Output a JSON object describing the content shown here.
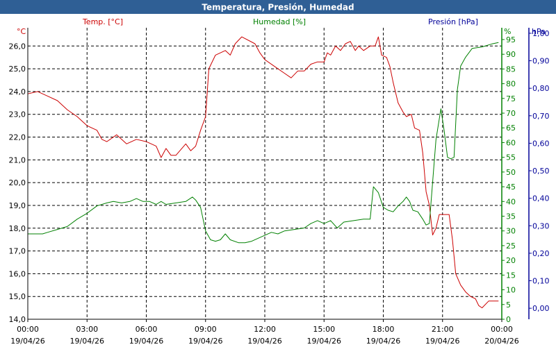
{
  "window": {
    "title": "Temperatura, Presión, Humedad"
  },
  "colors": {
    "titlebar": "#2f5f95",
    "temperature": "#cc0000",
    "humidity": "#008000",
    "pressure": "#000099",
    "grid": "#000000",
    "text": "#000000"
  },
  "chart_data": {
    "type": "line",
    "title": "Temperatura, Presión, Humedad",
    "grid": true,
    "legend": "top",
    "x_range": [
      "2026-04-19T00:00",
      "2026-04-20T00:00"
    ],
    "x_ticks": [
      {
        "time": "00:00",
        "date": "19/04/26"
      },
      {
        "time": "03:00",
        "date": "19/04/26"
      },
      {
        "time": "06:00",
        "date": "19/04/26"
      },
      {
        "time": "09:00",
        "date": "19/04/26"
      },
      {
        "time": "12:00",
        "date": "19/04/26"
      },
      {
        "time": "15:00",
        "date": "19/04/26"
      },
      {
        "time": "18:00",
        "date": "19/04/26"
      },
      {
        "time": "21:00",
        "date": "19/04/26"
      },
      {
        "time": "00:00",
        "date": "20/04/26"
      }
    ],
    "axes": {
      "temperature": {
        "unit": "°C",
        "range": [
          14.0,
          26.8
        ],
        "ticks": [
          "14,0",
          "15,0",
          "16,0",
          "17,0",
          "18,0",
          "19,0",
          "20,0",
          "21,0",
          "22,0",
          "23,0",
          "24,0",
          "25,0",
          "26,0"
        ],
        "tick_values": [
          14,
          15,
          16,
          17,
          18,
          19,
          20,
          21,
          22,
          23,
          24,
          25,
          26
        ]
      },
      "humidity": {
        "unit": "%",
        "range": [
          0,
          99
        ],
        "ticks": [
          "0",
          "5",
          "10",
          "15",
          "20",
          "25",
          "30",
          "35",
          "40",
          "45",
          "50",
          "55",
          "60",
          "65",
          "70",
          "75",
          "80",
          "85",
          "90",
          "95"
        ],
        "tick_values": [
          0,
          5,
          10,
          15,
          20,
          25,
          30,
          35,
          40,
          45,
          50,
          55,
          60,
          65,
          70,
          75,
          80,
          85,
          90,
          95
        ]
      },
      "pressure": {
        "unit": "hPa",
        "range": [
          -0.04,
          1.02
        ],
        "ticks": [
          "0,00",
          "0,10",
          "0,20",
          "0,30",
          "0,40",
          "0,50",
          "0,60",
          "0,70",
          "0,80",
          "0,90",
          "1,00"
        ],
        "tick_values": [
          0,
          0.1,
          0.2,
          0.3,
          0.4,
          0.5,
          0.6,
          0.7,
          0.8,
          0.9,
          1.0
        ]
      }
    },
    "series": [
      {
        "name": "Temp. [°C]",
        "axis": "temperature",
        "color": "#cc0000",
        "points": [
          [
            "00:00",
            23.9
          ],
          [
            "00:30",
            24.0
          ],
          [
            "01:00",
            23.8
          ],
          [
            "01:30",
            23.6
          ],
          [
            "02:00",
            23.2
          ],
          [
            "02:30",
            22.9
          ],
          [
            "03:00",
            22.5
          ],
          [
            "03:30",
            22.3
          ],
          [
            "03:45",
            21.9
          ],
          [
            "04:00",
            21.8
          ],
          [
            "04:30",
            22.1
          ],
          [
            "05:00",
            21.7
          ],
          [
            "05:30",
            21.9
          ],
          [
            "06:00",
            21.8
          ],
          [
            "06:30",
            21.6
          ],
          [
            "06:45",
            21.1
          ],
          [
            "07:00",
            21.5
          ],
          [
            "07:15",
            21.2
          ],
          [
            "07:30",
            21.2
          ],
          [
            "08:00",
            21.7
          ],
          [
            "08:15",
            21.4
          ],
          [
            "08:30",
            21.6
          ],
          [
            "08:45",
            22.3
          ],
          [
            "09:00",
            22.9
          ],
          [
            "09:10",
            25.0
          ],
          [
            "09:30",
            25.6
          ],
          [
            "10:00",
            25.8
          ],
          [
            "10:15",
            25.6
          ],
          [
            "10:30",
            26.1
          ],
          [
            "10:50",
            26.4
          ],
          [
            "11:30",
            26.1
          ],
          [
            "11:45",
            25.7
          ],
          [
            "12:00",
            25.4
          ],
          [
            "12:30",
            25.1
          ],
          [
            "13:00",
            24.8
          ],
          [
            "13:20",
            24.6
          ],
          [
            "13:40",
            24.9
          ],
          [
            "14:00",
            24.9
          ],
          [
            "14:20",
            25.2
          ],
          [
            "14:40",
            25.3
          ],
          [
            "15:00",
            25.3
          ],
          [
            "15:10",
            25.7
          ],
          [
            "15:20",
            25.6
          ],
          [
            "15:35",
            26.0
          ],
          [
            "15:50",
            25.8
          ],
          [
            "16:05",
            26.1
          ],
          [
            "16:20",
            26.2
          ],
          [
            "16:35",
            25.8
          ],
          [
            "16:45",
            26.0
          ],
          [
            "17:00",
            25.8
          ],
          [
            "17:20",
            26.0
          ],
          [
            "17:35",
            26.0
          ],
          [
            "17:45",
            26.4
          ],
          [
            "17:55",
            25.6
          ],
          [
            "18:10",
            25.5
          ],
          [
            "18:20",
            25.1
          ],
          [
            "18:30",
            24.4
          ],
          [
            "18:45",
            23.5
          ],
          [
            "19:00",
            23.1
          ],
          [
            "19:10",
            22.9
          ],
          [
            "19:25",
            23.0
          ],
          [
            "19:35",
            22.4
          ],
          [
            "19:50",
            22.3
          ],
          [
            "20:00",
            21.3
          ],
          [
            "20:10",
            19.6
          ],
          [
            "20:20",
            19.0
          ],
          [
            "20:30",
            17.7
          ],
          [
            "20:40",
            18.0
          ],
          [
            "20:50",
            18.6
          ],
          [
            "21:20",
            18.6
          ],
          [
            "21:30",
            17.5
          ],
          [
            "21:40",
            16.0
          ],
          [
            "21:55",
            15.5
          ],
          [
            "22:10",
            15.2
          ],
          [
            "22:25",
            15.0
          ],
          [
            "22:40",
            14.9
          ],
          [
            "22:50",
            14.6
          ],
          [
            "23:00",
            14.5
          ],
          [
            "23:20",
            14.8
          ],
          [
            "23:50",
            14.8
          ]
        ]
      },
      {
        "name": "Humedad [%]",
        "axis": "humidity",
        "color": "#008000",
        "points": [
          [
            "00:00",
            29.0
          ],
          [
            "00:45",
            29.0
          ],
          [
            "01:00",
            29.5
          ],
          [
            "01:30",
            30.5
          ],
          [
            "02:00",
            31.5
          ],
          [
            "02:30",
            34.0
          ],
          [
            "03:00",
            36.0
          ],
          [
            "03:30",
            38.5
          ],
          [
            "04:00",
            39.5
          ],
          [
            "04:20",
            40.0
          ],
          [
            "04:45",
            39.5
          ],
          [
            "05:10",
            40.0
          ],
          [
            "05:30",
            41.0
          ],
          [
            "05:50",
            40.0
          ],
          [
            "06:10",
            40.0
          ],
          [
            "06:30",
            39.0
          ],
          [
            "06:45",
            40.0
          ],
          [
            "07:00",
            39.0
          ],
          [
            "07:30",
            39.5
          ],
          [
            "08:00",
            40.0
          ],
          [
            "08:20",
            41.5
          ],
          [
            "08:30",
            40.5
          ],
          [
            "08:45",
            38.0
          ],
          [
            "09:00",
            30.0
          ],
          [
            "09:15",
            27.0
          ],
          [
            "09:30",
            26.5
          ],
          [
            "09:45",
            27.0
          ],
          [
            "10:00",
            29.0
          ],
          [
            "10:15",
            27.0
          ],
          [
            "10:40",
            26.0
          ],
          [
            "11:00",
            26.0
          ],
          [
            "11:20",
            26.5
          ],
          [
            "11:40",
            27.5
          ],
          [
            "12:00",
            28.5
          ],
          [
            "12:20",
            29.5
          ],
          [
            "12:40",
            29.0
          ],
          [
            "13:00",
            30.0
          ],
          [
            "13:30",
            30.5
          ],
          [
            "14:00",
            31.0
          ],
          [
            "14:20",
            32.5
          ],
          [
            "14:40",
            33.5
          ],
          [
            "15:00",
            32.5
          ],
          [
            "15:20",
            33.5
          ],
          [
            "15:40",
            31.0
          ],
          [
            "16:00",
            33.0
          ],
          [
            "16:30",
            33.5
          ],
          [
            "17:00",
            34.0
          ],
          [
            "17:20",
            34.0
          ],
          [
            "17:30",
            45.0
          ],
          [
            "17:45",
            43.0
          ],
          [
            "18:00",
            38.0
          ],
          [
            "18:15",
            37.0
          ],
          [
            "18:30",
            36.5
          ],
          [
            "18:45",
            38.5
          ],
          [
            "19:00",
            40.0
          ],
          [
            "19:10",
            41.5
          ],
          [
            "19:20",
            40.0
          ],
          [
            "19:30",
            37.0
          ],
          [
            "19:45",
            36.5
          ],
          [
            "20:00",
            34.0
          ],
          [
            "20:10",
            32.0
          ],
          [
            "20:20",
            32.5
          ],
          [
            "20:40",
            61.0
          ],
          [
            "20:55",
            71.5
          ],
          [
            "21:05",
            64.0
          ],
          [
            "21:15",
            55.0
          ],
          [
            "21:25",
            54.5
          ],
          [
            "21:35",
            55.0
          ],
          [
            "21:45",
            78.0
          ],
          [
            "21:55",
            86.0
          ],
          [
            "22:10",
            89.0
          ],
          [
            "22:30",
            92.0
          ],
          [
            "23:00",
            92.5
          ],
          [
            "23:30",
            93.5
          ],
          [
            "23:50",
            94.0
          ]
        ]
      },
      {
        "name": "Presión [hPa]",
        "axis": "pressure",
        "color": "#000099",
        "points": []
      }
    ]
  }
}
